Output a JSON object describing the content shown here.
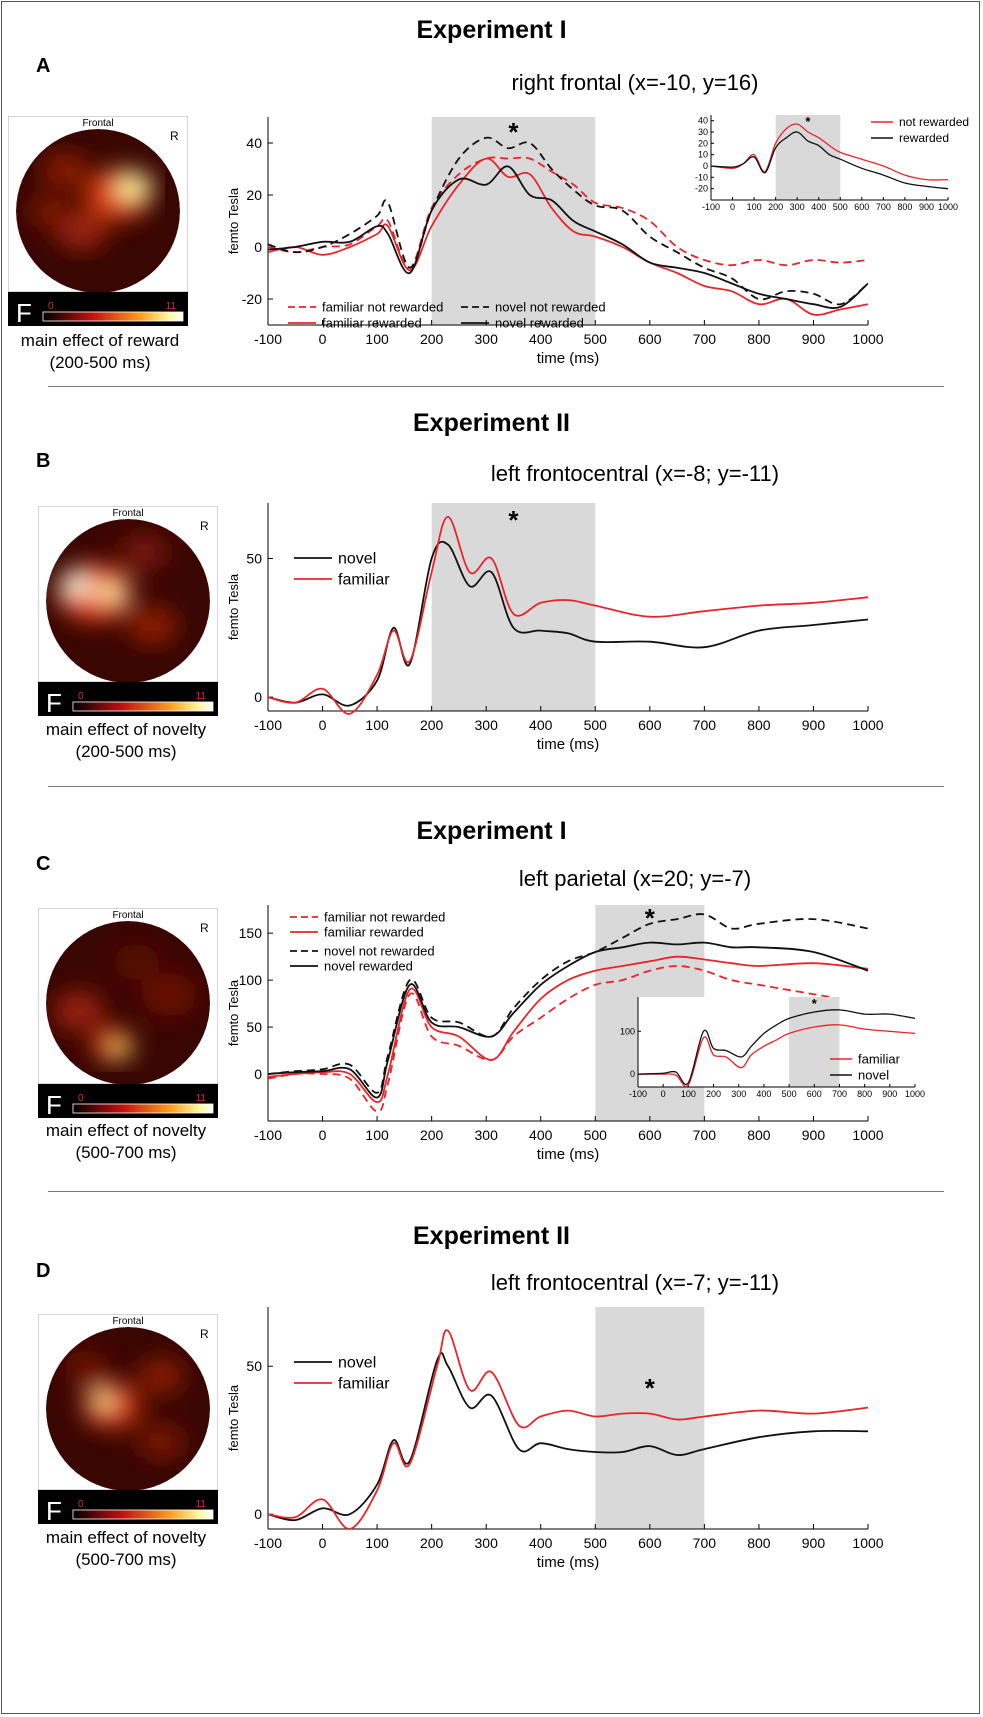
{
  "figure": {
    "panels": [
      {
        "letter": "A",
        "experiment": "Experiment I",
        "title": "right frontal (x=-10, y=16)",
        "topomap": {
          "frontal": "Frontal",
          "side": "R",
          "f_label": "F",
          "scale_min": "0",
          "scale_max": "11"
        },
        "caption": [
          "main effect of reward",
          "(200-500 ms)"
        ]
      },
      {
        "letter": "B",
        "experiment": "Experiment II",
        "title": "left frontocentral (x=-8; y=-11)",
        "topomap": {
          "frontal": "Frontal",
          "side": "R",
          "f_label": "F",
          "scale_min": "0",
          "scale_max": "11"
        },
        "caption": [
          "main effect of novelty",
          "(200-500 ms)"
        ]
      },
      {
        "letter": "C",
        "experiment": "Experiment I",
        "title": "left parietal (x=20; y=-7)",
        "topomap": {
          "frontal": "Frontal",
          "side": "R",
          "f_label": "F",
          "scale_min": "0",
          "scale_max": "11"
        },
        "caption": [
          "main effect of novelty",
          "(500-700 ms)"
        ]
      },
      {
        "letter": "D",
        "experiment": "Experiment II",
        "title": "left frontocentral (x=-7; y=-11)",
        "topomap": {
          "frontal": "Frontal",
          "side": "R",
          "f_label": "F",
          "scale_min": "0",
          "scale_max": "11"
        },
        "caption": [
          "main effect of novelty",
          "(500-700 ms)"
        ]
      }
    ],
    "colors": {
      "red": "#e8252a",
      "black": "#111111",
      "shade": "#d9d9d9"
    }
  },
  "chart_data": [
    {
      "type": "line",
      "panel": "A",
      "xlabel": "time (ms)",
      "ylabel": "femto Tesla",
      "xlim": [
        -100,
        1000
      ],
      "ylim": [
        -30,
        50
      ],
      "xticks": [
        -100,
        0,
        100,
        200,
        300,
        400,
        500,
        600,
        700,
        800,
        900,
        1000
      ],
      "yticks": [
        -20,
        0,
        20,
        40
      ],
      "shade": [
        200,
        500
      ],
      "star": "*",
      "star_x": 350,
      "legend": [
        {
          "label": "familiar not rewarded",
          "color": "red",
          "dash": true
        },
        {
          "label": "familiar rewarded",
          "color": "red",
          "dash": false
        },
        {
          "label": "novel not rewarded",
          "color": "black",
          "dash": true
        },
        {
          "label": "novel rewarded",
          "color": "black",
          "dash": false
        }
      ],
      "x": [
        -100,
        -50,
        0,
        50,
        100,
        120,
        160,
        200,
        250,
        300,
        340,
        380,
        420,
        460,
        500,
        550,
        600,
        650,
        700,
        750,
        800,
        850,
        900,
        950,
        1000
      ],
      "series": [
        {
          "name": "familiar not rewarded",
          "color": "red",
          "dash": true,
          "values": [
            0,
            -2,
            0,
            1,
            8,
            10,
            -8,
            15,
            28,
            34,
            34,
            34,
            29,
            24,
            17,
            15,
            10,
            0,
            -5,
            -7,
            -5,
            -7,
            -5,
            -6,
            -5
          ]
        },
        {
          "name": "familiar rewarded",
          "color": "red",
          "dash": false,
          "values": [
            -2,
            0,
            -3,
            0,
            5,
            8,
            -9,
            8,
            24,
            34,
            27,
            28,
            15,
            6,
            4,
            0,
            -6,
            -10,
            -15,
            -17,
            -22,
            -20,
            -26,
            -24,
            -22
          ]
        },
        {
          "name": "novel not rewarded",
          "color": "black",
          "dash": true,
          "values": [
            1,
            -2,
            0,
            5,
            12,
            17,
            -8,
            14,
            34,
            42,
            38,
            40,
            30,
            22,
            16,
            14,
            4,
            -2,
            -8,
            -12,
            -20,
            -17,
            -18,
            -22,
            -14
          ]
        },
        {
          "name": "novel rewarded",
          "color": "black",
          "dash": false,
          "values": [
            -1,
            0,
            2,
            2,
            8,
            5,
            -10,
            14,
            26,
            24,
            31,
            20,
            18,
            10,
            6,
            1,
            -6,
            -8,
            -10,
            -14,
            -18,
            -20,
            -22,
            -23,
            -14
          ]
        }
      ],
      "inset": {
        "xlim": [
          -100,
          1000
        ],
        "ylim": [
          -30,
          45
        ],
        "xticks": [
          -100,
          0,
          100,
          200,
          300,
          400,
          500,
          600,
          700,
          800,
          900,
          1000
        ],
        "yticks": [
          -20,
          -10,
          0,
          10,
          20,
          30,
          40
        ],
        "shade": [
          200,
          500
        ],
        "star": "*",
        "legend": [
          {
            "label": "not rewarded",
            "color": "red"
          },
          {
            "label": "rewarded",
            "color": "black"
          }
        ],
        "x": [
          -100,
          0,
          50,
          100,
          150,
          200,
          250,
          300,
          350,
          400,
          450,
          500,
          600,
          700,
          800,
          900,
          1000
        ],
        "series": [
          {
            "name": "not rewarded",
            "color": "red",
            "values": [
              0,
              -2,
              2,
              10,
              -5,
              20,
              33,
              37,
              30,
              25,
              18,
              12,
              6,
              0,
              -8,
              -12,
              -12
            ]
          },
          {
            "name": "rewarded",
            "color": "black",
            "values": [
              0,
              -1,
              2,
              8,
              -6,
              16,
              25,
              30,
              22,
              18,
              10,
              6,
              -2,
              -8,
              -15,
              -18,
              -20
            ]
          }
        ]
      }
    },
    {
      "type": "line",
      "panel": "B",
      "xlabel": "time (ms)",
      "ylabel": "femto Tesla",
      "xlim": [
        -100,
        1000
      ],
      "ylim": [
        -5,
        70
      ],
      "xticks": [
        -100,
        0,
        100,
        200,
        300,
        400,
        500,
        600,
        700,
        800,
        900,
        1000
      ],
      "yticks": [
        0,
        50
      ],
      "shade": [
        200,
        500
      ],
      "star": "*",
      "star_x": 350,
      "legend": [
        {
          "label": "novel",
          "color": "black"
        },
        {
          "label": "familiar",
          "color": "red"
        }
      ],
      "x": [
        -100,
        -50,
        0,
        50,
        100,
        130,
        160,
        200,
        230,
        270,
        310,
        350,
        400,
        450,
        500,
        600,
        700,
        800,
        900,
        1000
      ],
      "series": [
        {
          "name": "novel",
          "color": "black",
          "values": [
            0,
            -2,
            1,
            -3,
            6,
            25,
            12,
            50,
            55,
            40,
            45,
            25,
            24,
            23,
            20,
            20,
            18,
            24,
            26,
            28
          ]
        },
        {
          "name": "familiar",
          "color": "red",
          "values": [
            0,
            -2,
            3,
            -6,
            8,
            24,
            13,
            45,
            65,
            45,
            50,
            30,
            34,
            35,
            33,
            29,
            31,
            33,
            34,
            36
          ]
        }
      ]
    },
    {
      "type": "line",
      "panel": "C",
      "xlabel": "time (ms)",
      "ylabel": "femto Tesla",
      "xlim": [
        -100,
        1000
      ],
      "ylim": [
        -50,
        180
      ],
      "xticks": [
        -100,
        0,
        100,
        200,
        300,
        400,
        500,
        600,
        700,
        800,
        900,
        1000
      ],
      "yticks": [
        0,
        50,
        100,
        150
      ],
      "shade": [
        500,
        700
      ],
      "star": "*",
      "star_x": 600,
      "legend": [
        {
          "label": "familiar not rewarded",
          "color": "red",
          "dash": true
        },
        {
          "label": "familiar rewarded",
          "color": "red",
          "dash": false
        },
        {
          "label": "novel not rewarded",
          "color": "black",
          "dash": true
        },
        {
          "label": "novel rewarded",
          "color": "black",
          "dash": false
        }
      ],
      "x": [
        -100,
        -50,
        0,
        50,
        100,
        120,
        160,
        200,
        250,
        310,
        350,
        400,
        450,
        500,
        550,
        600,
        650,
        700,
        750,
        800,
        900,
        1000
      ],
      "series": [
        {
          "name": "familiar not rewarded",
          "color": "red",
          "dash": true,
          "values": [
            -5,
            0,
            0,
            -5,
            -40,
            -10,
            85,
            40,
            30,
            15,
            40,
            60,
            80,
            95,
            100,
            110,
            115,
            110,
            100,
            95,
            85,
            75
          ]
        },
        {
          "name": "familiar rewarded",
          "color": "red",
          "dash": false,
          "values": [
            -3,
            0,
            2,
            0,
            -30,
            0,
            90,
            50,
            40,
            15,
            45,
            80,
            100,
            110,
            115,
            120,
            125,
            122,
            118,
            115,
            118,
            112
          ]
        },
        {
          "name": "novel not rewarded",
          "color": "black",
          "dash": true,
          "values": [
            0,
            3,
            5,
            10,
            -20,
            20,
            100,
            60,
            55,
            40,
            70,
            100,
            120,
            130,
            145,
            160,
            165,
            170,
            155,
            160,
            165,
            155
          ]
        },
        {
          "name": "novel rewarded",
          "color": "black",
          "dash": false,
          "values": [
            0,
            2,
            3,
            5,
            -25,
            15,
            95,
            55,
            50,
            40,
            65,
            95,
            115,
            130,
            135,
            140,
            138,
            140,
            135,
            135,
            130,
            110
          ]
        }
      ],
      "inset": {
        "xlim": [
          -100,
          1000
        ],
        "ylim": [
          -30,
          180
        ],
        "xticks": [
          -100,
          0,
          100,
          200,
          300,
          400,
          500,
          600,
          700,
          800,
          900,
          1000
        ],
        "yticks": [
          0,
          100
        ],
        "shade": [
          500,
          700
        ],
        "star": "*",
        "legend": [
          {
            "label": "familiar",
            "color": "red"
          },
          {
            "label": "novel",
            "color": "black"
          }
        ],
        "x": [
          -100,
          0,
          50,
          100,
          160,
          200,
          250,
          310,
          350,
          400,
          450,
          500,
          600,
          700,
          800,
          900,
          1000
        ],
        "series": [
          {
            "name": "familiar",
            "color": "red",
            "values": [
              0,
              0,
              -2,
              -25,
              85,
              45,
              40,
              15,
              45,
              65,
              80,
              95,
              110,
              115,
              105,
              100,
              95
            ]
          },
          {
            "name": "novel",
            "color": "black",
            "values": [
              0,
              2,
              5,
              -20,
              100,
              60,
              55,
              40,
              65,
              95,
              115,
              130,
              145,
              150,
              140,
              140,
              130
            ]
          }
        ]
      }
    },
    {
      "type": "line",
      "panel": "D",
      "xlabel": "time (ms)",
      "ylabel": "femto Tesla",
      "xlim": [
        -100,
        1000
      ],
      "ylim": [
        -5,
        70
      ],
      "xticks": [
        -100,
        0,
        100,
        200,
        300,
        400,
        500,
        600,
        700,
        800,
        900,
        1000
      ],
      "yticks": [
        0,
        50
      ],
      "shade": [
        500,
        700
      ],
      "star": "*",
      "star_x": 600,
      "legend": [
        {
          "label": "novel",
          "color": "black"
        },
        {
          "label": "familiar",
          "color": "red"
        }
      ],
      "x": [
        -100,
        -50,
        0,
        50,
        100,
        130,
        160,
        210,
        230,
        270,
        310,
        360,
        400,
        450,
        500,
        550,
        600,
        650,
        700,
        800,
        900,
        1000
      ],
      "series": [
        {
          "name": "novel",
          "color": "black",
          "values": [
            0,
            -2,
            2,
            0,
            10,
            25,
            18,
            52,
            50,
            36,
            40,
            22,
            24,
            22,
            21,
            21,
            23,
            20,
            22,
            26,
            28,
            28
          ]
        },
        {
          "name": "familiar",
          "color": "red",
          "values": [
            0,
            -1,
            5,
            -5,
            8,
            24,
            17,
            50,
            62,
            42,
            48,
            30,
            33,
            35,
            33,
            34,
            34,
            32,
            33,
            35,
            34,
            36
          ]
        }
      ]
    }
  ]
}
